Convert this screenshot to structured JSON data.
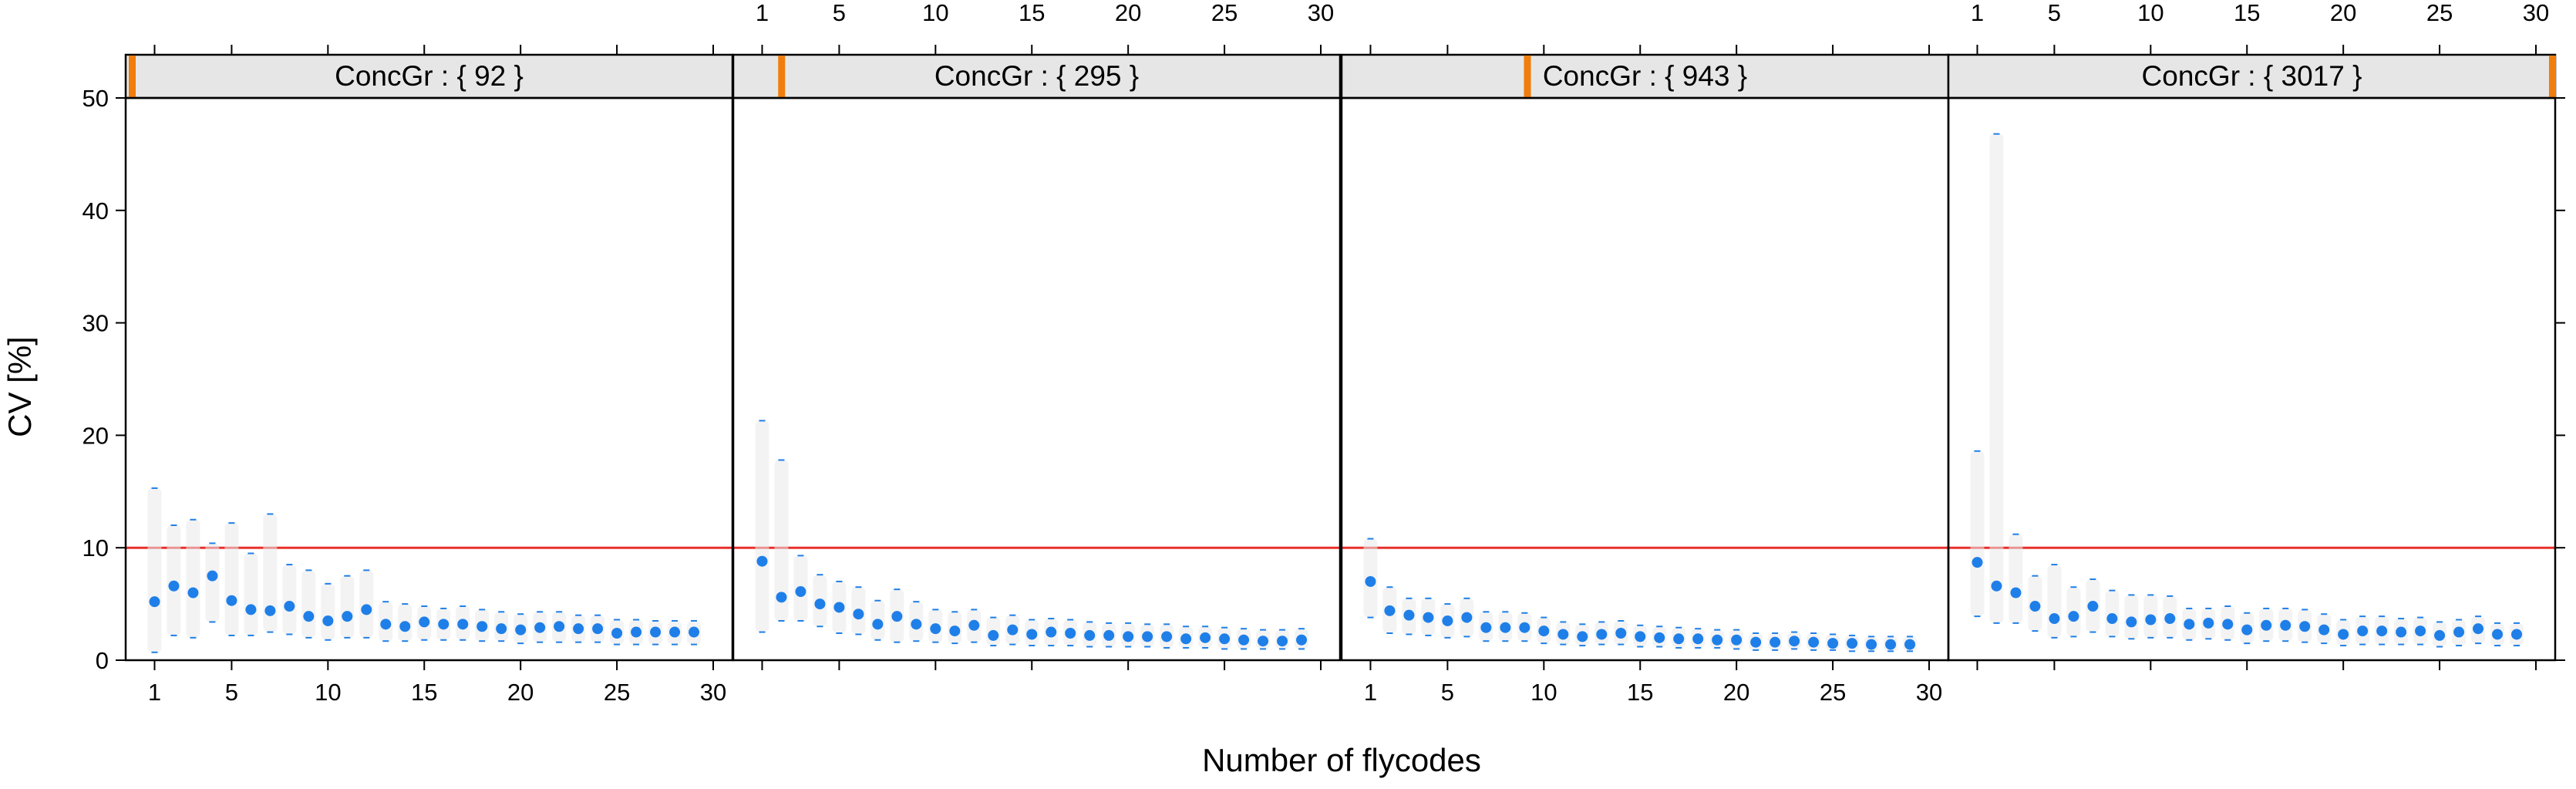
{
  "chart_data": {
    "type": "scatter",
    "layout": "lattice-panels",
    "xlabel": "Number of flycodes",
    "ylabel": "CV [%]",
    "xlim": [
      -0.5,
      31
    ],
    "ylim": [
      0,
      50
    ],
    "x_ticks": [
      1,
      5,
      10,
      15,
      20,
      25,
      30
    ],
    "y_ticks": [
      0,
      10,
      20,
      30,
      40,
      50
    ],
    "reference_line": {
      "y": 10,
      "color": "#e8302a"
    },
    "colors": {
      "point": "#1f7fe8",
      "strip_bg": "#e6e6e6",
      "strip_marker": "#f07d0c",
      "cloud": "#e9e9e9"
    },
    "panels": [
      {
        "strip_label": "ConcGr : { 92 }",
        "strip_marker_pos": 0.0,
        "x": [
          1,
          2,
          3,
          4,
          5,
          6,
          7,
          8,
          9,
          10,
          11,
          12,
          13,
          14,
          15,
          16,
          17,
          18,
          19,
          20,
          21,
          22,
          23,
          24,
          25,
          26,
          27,
          28,
          29
        ],
        "median": [
          5.2,
          6.6,
          6.0,
          7.5,
          5.3,
          4.5,
          4.4,
          4.8,
          3.9,
          3.5,
          3.9,
          4.5,
          3.2,
          3.0,
          3.4,
          3.2,
          3.2,
          3.0,
          2.8,
          2.7,
          2.9,
          3.0,
          2.8,
          2.8,
          2.4,
          2.5,
          2.5,
          2.5,
          2.5
        ],
        "upper": [
          15.3,
          12.0,
          12.5,
          10.4,
          12.2,
          9.5,
          13.0,
          8.5,
          8.0,
          6.8,
          7.5,
          8.0,
          5.2,
          5.0,
          4.8,
          4.6,
          4.8,
          4.5,
          4.3,
          4.1,
          4.3,
          4.3,
          4.0,
          4.0,
          3.6,
          3.6,
          3.5,
          3.5,
          3.5
        ],
        "lower": [
          0.7,
          2.2,
          2.0,
          3.4,
          2.2,
          2.2,
          2.5,
          2.3,
          2.0,
          1.8,
          2.0,
          2.0,
          1.7,
          1.7,
          1.8,
          1.8,
          1.8,
          1.7,
          1.7,
          1.5,
          1.6,
          1.6,
          1.6,
          1.6,
          1.4,
          1.4,
          1.4,
          1.4,
          1.4
        ]
      },
      {
        "strip_label": "ConcGr : { 295 }",
        "strip_marker_pos": 0.07,
        "x": [
          1,
          2,
          3,
          4,
          5,
          6,
          7,
          8,
          9,
          10,
          11,
          12,
          13,
          14,
          15,
          16,
          17,
          18,
          19,
          20,
          21,
          22,
          23,
          24,
          25,
          26,
          27,
          28,
          29
        ],
        "median": [
          8.8,
          5.6,
          6.1,
          5.0,
          4.7,
          4.1,
          3.2,
          3.9,
          3.2,
          2.8,
          2.6,
          3.1,
          2.2,
          2.7,
          2.3,
          2.5,
          2.4,
          2.2,
          2.2,
          2.1,
          2.1,
          2.1,
          1.9,
          2.0,
          1.9,
          1.8,
          1.7,
          1.7,
          1.8
        ],
        "upper": [
          21.3,
          17.8,
          9.3,
          7.6,
          7.0,
          6.5,
          5.3,
          6.3,
          5.2,
          4.5,
          4.3,
          4.5,
          3.8,
          4.0,
          3.6,
          3.7,
          3.6,
          3.4,
          3.3,
          3.3,
          3.2,
          3.2,
          3.0,
          3.0,
          2.9,
          2.8,
          2.7,
          2.7,
          2.8
        ],
        "lower": [
          2.5,
          3.5,
          3.5,
          3.0,
          2.4,
          2.3,
          1.8,
          1.6,
          1.7,
          1.6,
          1.5,
          1.6,
          1.3,
          1.4,
          1.3,
          1.3,
          1.3,
          1.2,
          1.2,
          1.2,
          1.2,
          1.1,
          1.1,
          1.1,
          1.0,
          1.0,
          1.0,
          1.0,
          1.0
        ]
      },
      {
        "strip_label": "ConcGr : { 943 }",
        "strip_marker_pos": 0.3,
        "x": [
          1,
          2,
          3,
          4,
          5,
          6,
          7,
          8,
          9,
          10,
          11,
          12,
          13,
          14,
          15,
          16,
          17,
          18,
          19,
          20,
          21,
          22,
          23,
          24,
          25,
          26,
          27,
          28,
          29
        ],
        "median": [
          7.0,
          4.4,
          4.0,
          3.8,
          3.5,
          3.8,
          2.9,
          2.9,
          2.9,
          2.6,
          2.3,
          2.1,
          2.3,
          2.4,
          2.1,
          2.0,
          1.9,
          1.9,
          1.8,
          1.8,
          1.6,
          1.6,
          1.7,
          1.6,
          1.5,
          1.5,
          1.4,
          1.4,
          1.4
        ],
        "upper": [
          10.8,
          6.5,
          5.5,
          5.5,
          5.0,
          5.5,
          4.3,
          4.3,
          4.2,
          3.8,
          3.4,
          3.2,
          3.4,
          3.5,
          3.1,
          3.0,
          2.9,
          2.8,
          2.7,
          2.7,
          2.4,
          2.4,
          2.5,
          2.4,
          2.3,
          2.2,
          2.1,
          2.1,
          2.1
        ],
        "lower": [
          3.8,
          2.4,
          2.3,
          2.2,
          2.0,
          2.1,
          1.7,
          1.7,
          1.7,
          1.5,
          1.4,
          1.3,
          1.4,
          1.4,
          1.2,
          1.2,
          1.1,
          1.1,
          1.1,
          1.0,
          0.9,
          0.9,
          1.0,
          0.9,
          0.9,
          0.8,
          0.8,
          0.8,
          0.8
        ]
      },
      {
        "strip_label": "ConcGr : { 3017 }",
        "strip_marker_pos": 1.0,
        "x": [
          1,
          2,
          3,
          4,
          5,
          6,
          7,
          8,
          9,
          10,
          11,
          12,
          13,
          14,
          15,
          16,
          17,
          18,
          19,
          20,
          21,
          22,
          23,
          24,
          25,
          26,
          27,
          28,
          29
        ],
        "median": [
          8.7,
          6.6,
          6.0,
          4.8,
          3.7,
          3.9,
          4.8,
          3.7,
          3.4,
          3.6,
          3.7,
          3.2,
          3.3,
          3.2,
          2.7,
          3.1,
          3.1,
          3.0,
          2.7,
          2.3,
          2.6,
          2.6,
          2.5,
          2.6,
          2.2,
          2.5,
          2.8,
          2.3,
          2.3
        ],
        "upper": [
          18.6,
          46.8,
          11.2,
          7.5,
          8.5,
          6.5,
          7.2,
          6.2,
          5.8,
          5.8,
          5.7,
          4.6,
          4.6,
          4.8,
          4.2,
          4.6,
          4.6,
          4.5,
          4.1,
          3.6,
          3.9,
          3.9,
          3.7,
          3.8,
          3.4,
          3.6,
          3.9,
          3.3,
          3.3
        ],
        "lower": [
          3.9,
          3.3,
          3.3,
          2.6,
          2.0,
          2.1,
          2.5,
          2.1,
          1.9,
          2.0,
          2.0,
          1.8,
          1.9,
          1.8,
          1.5,
          1.7,
          1.7,
          1.6,
          1.5,
          1.3,
          1.4,
          1.4,
          1.4,
          1.4,
          1.2,
          1.3,
          1.5,
          1.3,
          1.3
        ]
      }
    ]
  }
}
